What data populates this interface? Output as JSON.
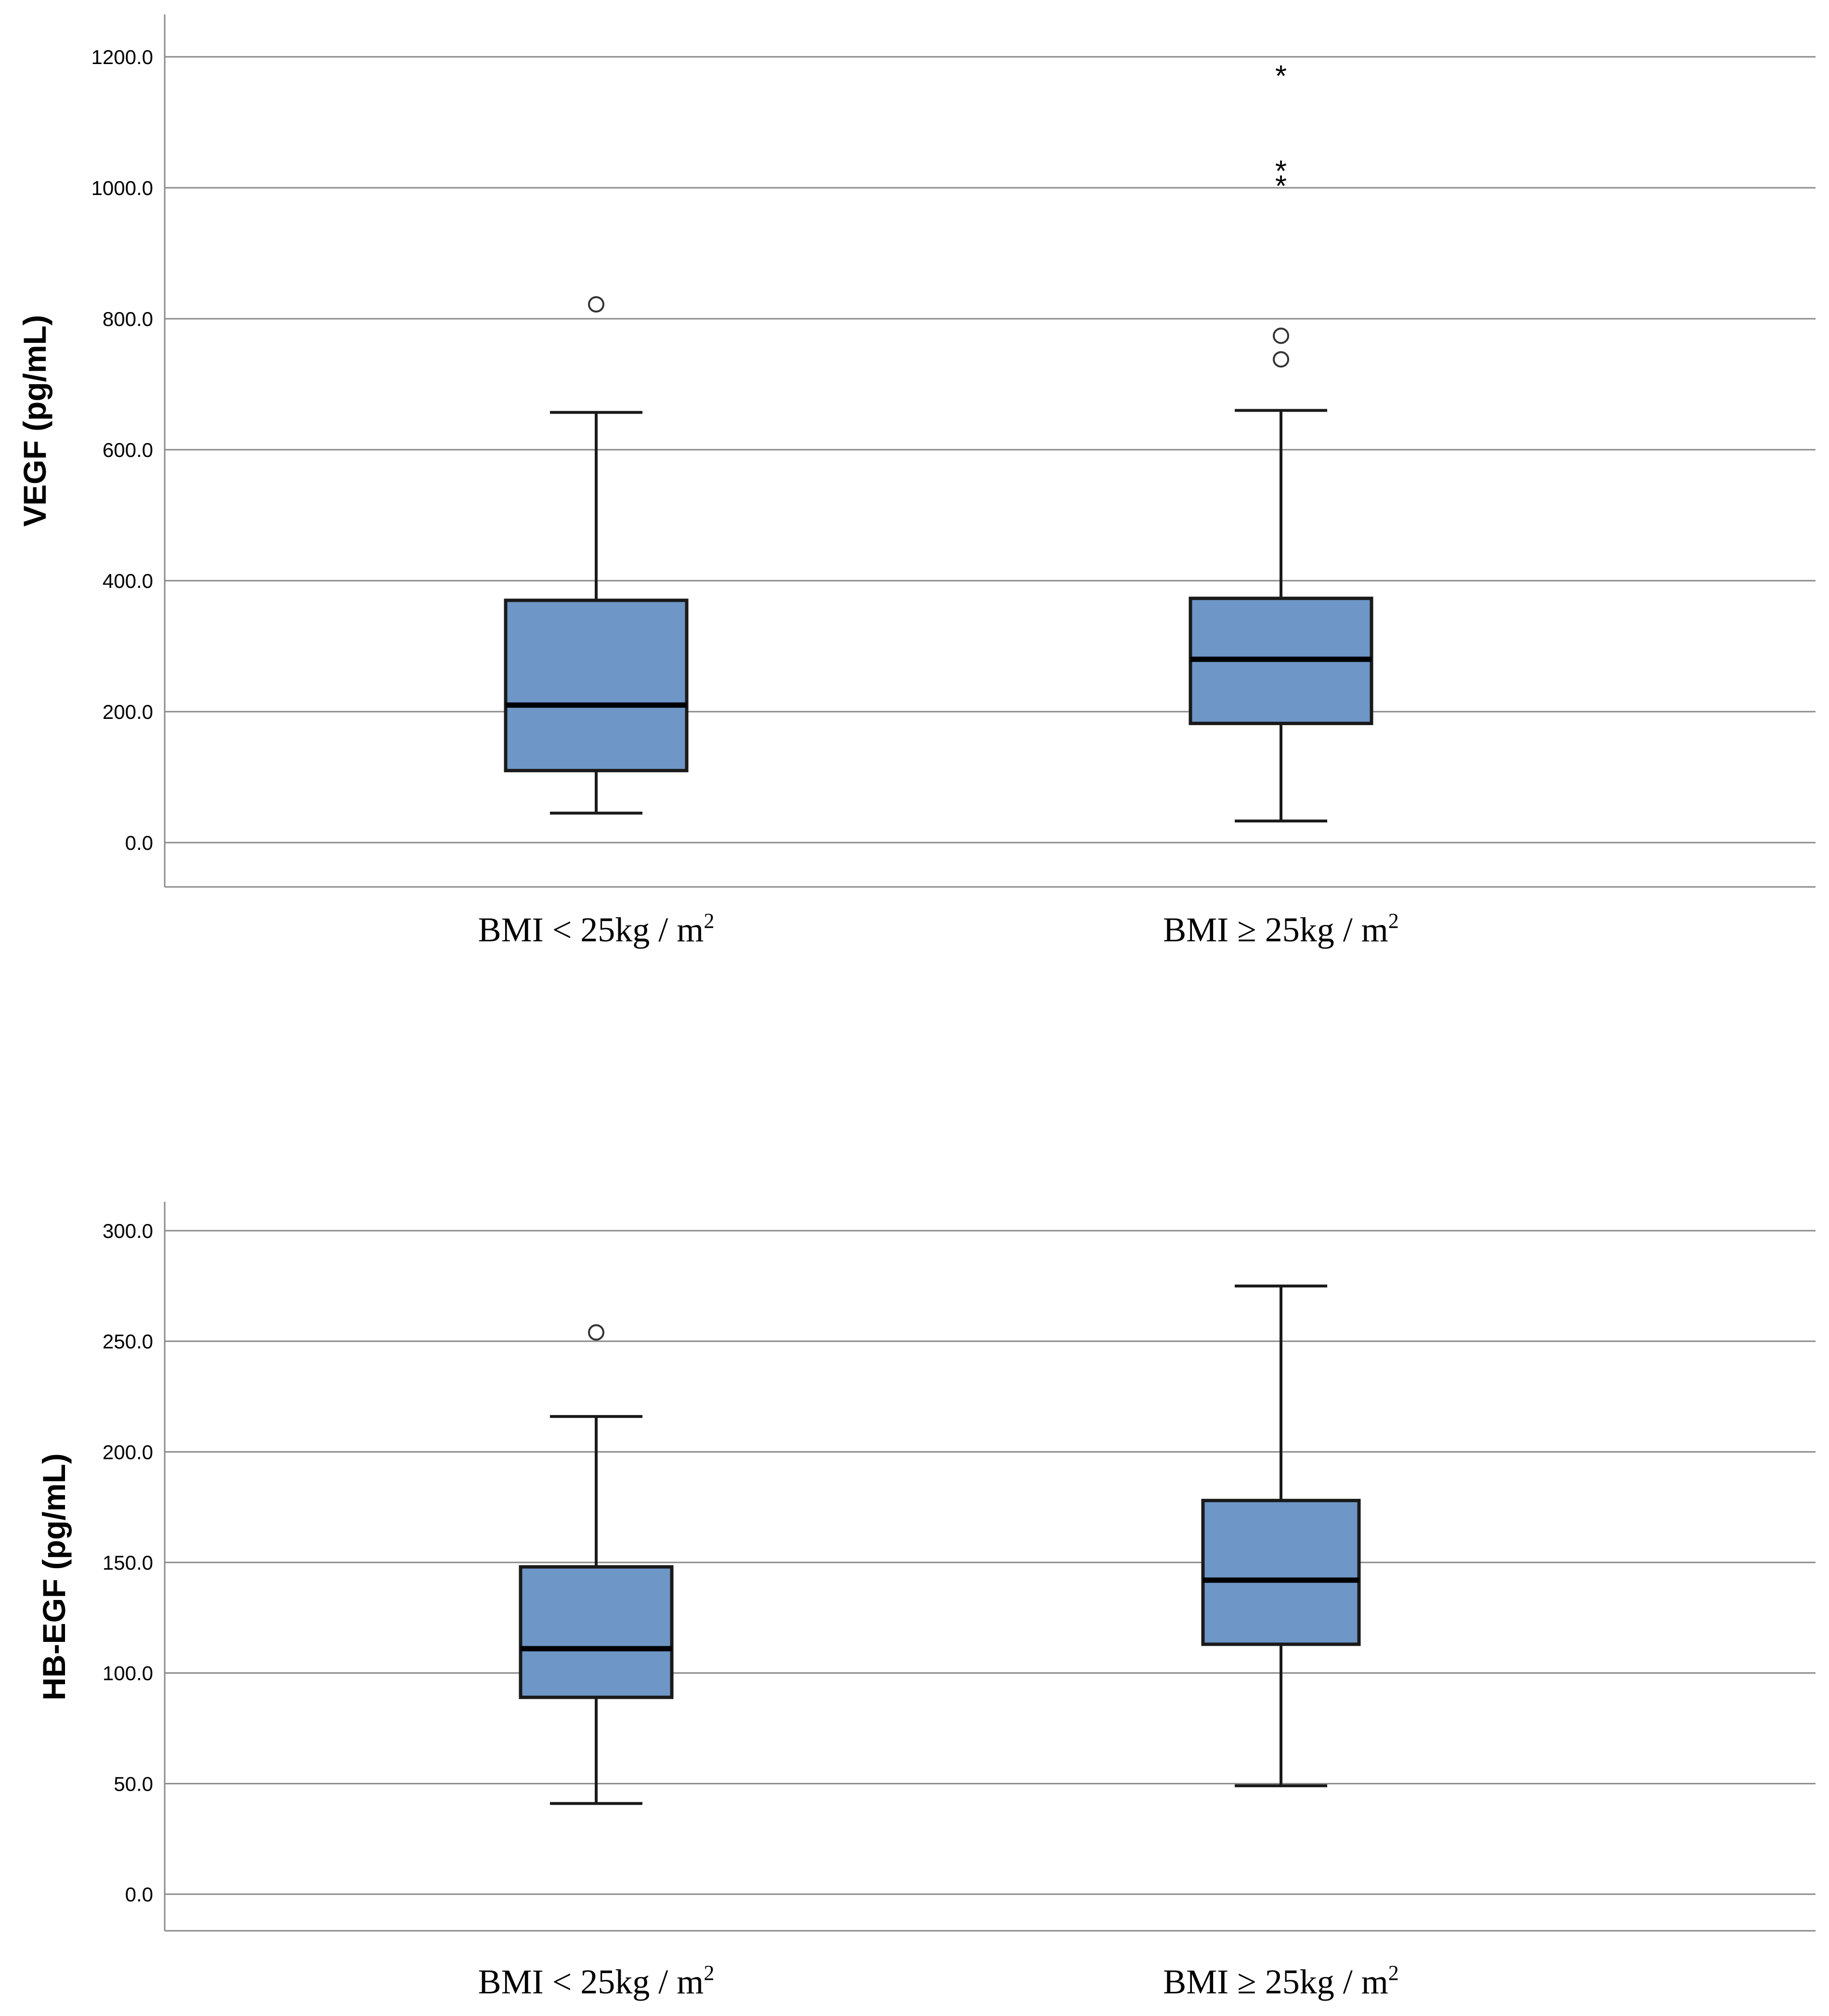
{
  "colors": {
    "box_fill": "#6e96c6",
    "box_stroke": "#1a1a1a",
    "gridline": "#8a8a8a",
    "axis": "#8a8a8a",
    "text": "#000000"
  },
  "chart_data": [
    {
      "type": "boxplot",
      "title": "",
      "xlabel": "",
      "ylabel": "VEGF (pg/mL)",
      "ylim": [
        -70,
        1265
      ],
      "grid": true,
      "yticks": [
        0,
        200,
        400,
        600,
        800,
        1000,
        1200
      ],
      "ytick_labels": [
        "0.0",
        "200.0",
        "400.0",
        "600.0",
        "800.0",
        "1000.0",
        "1200.0"
      ],
      "categories": [
        {
          "prefix": "BMI < 25kg / m",
          "sup": "2"
        },
        {
          "prefix": "BMI ≥ 25kg / m",
          "sup": "2"
        }
      ],
      "boxes": [
        {
          "whisker_low": 45,
          "q1": 110,
          "median": 210,
          "q3": 370,
          "whisker_high": 657,
          "outliers": [
            822
          ],
          "extremes": []
        },
        {
          "whisker_low": 33,
          "q1": 182,
          "median": 280,
          "q3": 373,
          "whisker_high": 660,
          "outliers": [
            774,
            738
          ],
          "extremes": [
            1180,
            1035,
            1012
          ]
        }
      ]
    },
    {
      "type": "boxplot",
      "title": "",
      "xlabel": "",
      "ylabel": "HB-EGF (pg/mL)",
      "ylim": [
        -17,
        314
      ],
      "grid": true,
      "yticks": [
        0,
        50,
        100,
        150,
        200,
        250,
        300
      ],
      "ytick_labels": [
        "0.0",
        "50.0",
        "100.0",
        "150.0",
        "200.0",
        "250.0",
        "300.0"
      ],
      "categories": [
        {
          "prefix": "BMI < 25kg / m",
          "sup": "2"
        },
        {
          "prefix": "BMI ≥ 25kg / m",
          "sup": "2"
        }
      ],
      "boxes": [
        {
          "whisker_low": 41,
          "q1": 89,
          "median": 111,
          "q3": 148,
          "whisker_high": 216,
          "outliers": [
            254
          ],
          "extremes": []
        },
        {
          "whisker_low": 49,
          "q1": 113,
          "median": 142,
          "q3": 178,
          "whisker_high": 275,
          "outliers": [],
          "extremes": []
        }
      ]
    }
  ]
}
